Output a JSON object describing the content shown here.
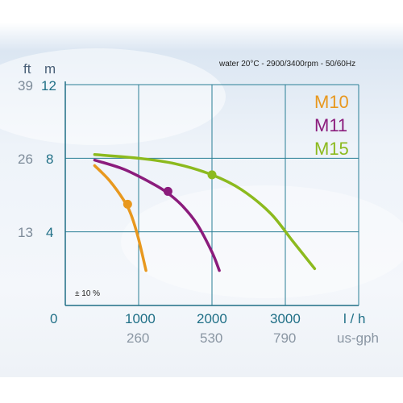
{
  "chart_data": {
    "type": "line",
    "condition": "water 20°C - 2900/3400rpm - 50/60Hz",
    "tolerance": "± 10 %",
    "y_units": {
      "ft": "ft",
      "m": "m"
    },
    "x_units": {
      "lh": "l / h",
      "gph": "us-gph"
    },
    "y_ticks_m": [
      "12",
      "8",
      "4"
    ],
    "y_ticks_ft": [
      "39",
      "26",
      "13"
    ],
    "x_ticks_lh": [
      "0",
      "1000",
      "2000",
      "3000"
    ],
    "x_ticks_gph": [
      "260",
      "530",
      "790"
    ],
    "xlim": [
      0,
      4000
    ],
    "ylim": [
      0,
      12
    ],
    "grid": true,
    "legend_position": "top-right",
    "series": [
      {
        "name": "M10",
        "color": "#e8981e",
        "x": [
          400,
          600,
          800,
          900,
          1000,
          1100
        ],
        "y": [
          7.6,
          6.8,
          5.7,
          4.9,
          3.6,
          1.9
        ],
        "marker": {
          "x": 850,
          "y": 5.5
        }
      },
      {
        "name": "M11",
        "color": "#8b1c7c",
        "x": [
          400,
          800,
          1200,
          1400,
          1600,
          1800,
          2000,
          2100
        ],
        "y": [
          7.9,
          7.4,
          6.6,
          6.1,
          5.4,
          4.4,
          2.9,
          1.9
        ],
        "marker": {
          "x": 1400,
          "y": 6.2
        }
      },
      {
        "name": "M15",
        "color": "#8cba1e",
        "x": [
          400,
          1000,
          1500,
          2000,
          2400,
          2800,
          3100,
          3400
        ],
        "y": [
          8.2,
          8.0,
          7.7,
          7.1,
          6.3,
          5.0,
          3.5,
          2.0
        ],
        "marker": {
          "x": 2000,
          "y": 7.1
        }
      }
    ]
  }
}
